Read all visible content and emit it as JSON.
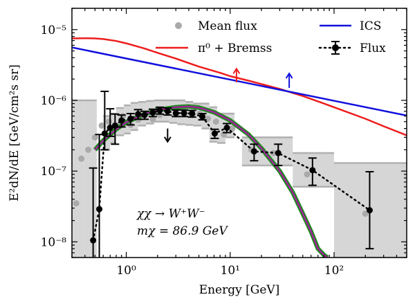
{
  "chart_data": {
    "type": "scatter",
    "title": "",
    "xlabel": "Energy [GeV]",
    "ylabel": "E²dN/dE [GeV/cm²s sr]",
    "xscale": "log",
    "yscale": "log",
    "xlim": [
      0.3,
      500
    ],
    "ylim": [
      6e-09,
      2e-05
    ],
    "x_ticks": [
      {
        "value": 1,
        "label": "10⁰"
      },
      {
        "value": 10,
        "label": "10¹"
      },
      {
        "value": 100,
        "label": "10²"
      }
    ],
    "y_ticks": [
      {
        "value": 1e-08,
        "label": "10⁻⁸"
      },
      {
        "value": 1e-07,
        "label": "10⁻⁷"
      },
      {
        "value": 1e-06,
        "label": "10⁻⁶"
      },
      {
        "value": 1e-05,
        "label": "10⁻⁵"
      }
    ],
    "legend": {
      "placement": "top",
      "entries": [
        {
          "key": "mean",
          "label": "Mean flux"
        },
        {
          "key": "pi0",
          "label": "π⁰ + Bremss"
        },
        {
          "key": "ics",
          "label": "ICS"
        },
        {
          "key": "flux",
          "label": "Flux"
        }
      ]
    },
    "annotation": {
      "line1": "χχ → W⁺W⁻",
      "line2": "mχ = 86.9 GeV"
    },
    "colors": {
      "pi0": "#ee1c1c",
      "ics": "#1010dd",
      "mean": "#aaaaaa",
      "band_fill": "#d6d6d6",
      "band_edge": "#b0b0b0",
      "dm_outer": "#1f8a1f",
      "dm_inner": "#a0209a",
      "flux": "#000000"
    },
    "series": [
      {
        "name": "pi0",
        "label": "π⁰ + Bremss",
        "x": [
          0.3,
          0.4,
          0.5,
          0.6,
          0.8,
          1.0,
          1.5,
          2,
          3,
          5,
          8,
          10,
          15,
          20,
          30,
          50,
          80,
          100,
          200,
          300,
          500
        ],
        "y": [
          7.5e-06,
          7.55e-06,
          7.5e-06,
          7.35e-06,
          6.9e-06,
          6.4e-06,
          5.4e-06,
          4.7e-06,
          3.9e-06,
          3e-06,
          2.45e-06,
          2.2e-06,
          1.9e-06,
          1.7e-06,
          1.45e-06,
          1.15e-06,
          9e-07,
          8e-07,
          5.5e-07,
          4.3e-07,
          3.2e-07
        ]
      },
      {
        "name": "ics",
        "label": "ICS",
        "x": [
          0.3,
          500
        ],
        "y": [
          5.6e-06,
          6.1e-07
        ]
      },
      {
        "name": "dm_model",
        "label": "χχ → W⁺W⁻",
        "x": [
          0.5,
          0.6,
          0.7,
          0.8,
          1.0,
          1.5,
          2,
          3,
          4,
          5,
          7,
          10,
          15,
          20,
          30,
          40,
          50,
          60,
          70,
          80,
          86
        ],
        "y": [
          2e-07,
          2.7e-07,
          3.3e-07,
          3.9e-07,
          4.9e-07,
          6.4e-07,
          7.3e-07,
          8e-07,
          8.2e-07,
          7.9e-07,
          6.8e-07,
          5.2e-07,
          3.3e-07,
          2.1e-07,
          1e-07,
          5e-08,
          2.5e-08,
          1.4e-08,
          8e-09,
          6.5e-09,
          6e-09
        ]
      },
      {
        "name": "mean_flux",
        "label": "Mean flux",
        "x": [
          0.33,
          0.37,
          0.43,
          0.5,
          0.58,
          0.68,
          0.8,
          0.93,
          1.1,
          1.3,
          1.5,
          1.8,
          2.1,
          2.5,
          3.0,
          3.6,
          4.3,
          5.1,
          6.1,
          7.3,
          8.7,
          10.5,
          16,
          26,
          55,
          200
        ],
        "y": [
          3.5e-08,
          1.5e-07,
          2e-07,
          3e-07,
          4.4e-07,
          5e-07,
          4.4e-07,
          6e-07,
          4.5e-07,
          5.3e-07,
          6.2e-07,
          5.4e-07,
          6.2e-07,
          7.5e-07,
          6.3e-07,
          6.8e-07,
          6.2e-07,
          6.5e-07,
          5.5e-07,
          5e-07,
          3.3e-07,
          4e-07,
          2e-07,
          1.8e-07,
          9e-08,
          2.5e-08
        ]
      },
      {
        "name": "flux",
        "label": "Flux",
        "x": [
          0.48,
          0.55,
          0.62,
          0.7,
          0.78,
          0.9,
          1.1,
          1.3,
          1.5,
          1.8,
          2.1,
          2.5,
          3.0,
          3.6,
          4.3,
          5.4,
          7.1,
          9.3,
          17,
          29,
          62,
          220
        ],
        "y": [
          1.05e-08,
          2.9e-08,
          3.4e-07,
          4.1e-07,
          4.4e-07,
          5.2e-07,
          5.5e-07,
          6.4e-07,
          6.2e-07,
          6.7e-07,
          7.2e-07,
          7e-07,
          6.6e-07,
          6.6e-07,
          6.5e-07,
          5.9e-07,
          3.4e-07,
          4.1e-07,
          1.9e-07,
          1.8e-07,
          1.03e-07,
          2.8e-08
        ],
        "yerr_low": [
          9e-09,
          2.5e-08,
          1.4e-07,
          1e-07,
          2e-07,
          1e-07,
          1e-07,
          1e-07,
          8e-08,
          8e-08,
          8e-08,
          8e-08,
          7e-08,
          7e-08,
          7e-08,
          6e-08,
          5e-08,
          6e-08,
          5e-08,
          6e-08,
          4e-08,
          2e-08
        ],
        "yerr_high": [
          1e-07,
          3e-07,
          1e-06,
          3.5e-07,
          2e-07,
          1e-07,
          1e-07,
          1e-07,
          8e-08,
          8e-08,
          8e-08,
          8e-08,
          7e-08,
          7e-08,
          7e-08,
          6e-08,
          5e-08,
          6e-08,
          5e-08,
          6e-08,
          5e-08,
          7e-08
        ]
      }
    ],
    "uncertainty_bands": [
      {
        "x0": 0.3,
        "x1": 0.34,
        "y_low": 6e-09,
        "y_high": 1e-06
      },
      {
        "x0": 0.34,
        "x1": 0.39,
        "y_low": 6e-09,
        "y_high": 1e-06
      },
      {
        "x0": 0.39,
        "x1": 0.45,
        "y_low": 6e-09,
        "y_high": 1e-06
      },
      {
        "x0": 0.45,
        "x1": 0.52,
        "y_low": 6e-09,
        "y_high": 1e-06
      },
      {
        "x0": 0.6,
        "x1": 0.7,
        "y_low": 2e-07,
        "y_high": 6e-07
      },
      {
        "x0": 0.7,
        "x1": 0.8,
        "y_low": 2.5e-07,
        "y_high": 6.5e-07
      },
      {
        "x0": 0.8,
        "x1": 0.95,
        "y_low": 3.2e-07,
        "y_high": 7.8e-07
      },
      {
        "x0": 0.95,
        "x1": 1.1,
        "y_low": 3.4e-07,
        "y_high": 8.5e-07
      },
      {
        "x0": 1.1,
        "x1": 1.3,
        "y_low": 3.8e-07,
        "y_high": 9.2e-07
      },
      {
        "x0": 1.3,
        "x1": 1.55,
        "y_low": 4.4e-07,
        "y_high": 9.5e-07
      },
      {
        "x0": 1.55,
        "x1": 1.85,
        "y_low": 4.7e-07,
        "y_high": 9.8e-07
      },
      {
        "x0": 1.85,
        "x1": 2.2,
        "y_low": 5e-07,
        "y_high": 1e-06
      },
      {
        "x0": 2.2,
        "x1": 2.6,
        "y_low": 5e-07,
        "y_high": 1e-06
      },
      {
        "x0": 2.6,
        "x1": 3.1,
        "y_low": 4.8e-07,
        "y_high": 1e-06
      },
      {
        "x0": 3.1,
        "x1": 3.7,
        "y_low": 4.6e-07,
        "y_high": 1e-06
      },
      {
        "x0": 3.7,
        "x1": 4.4,
        "y_low": 4.5e-07,
        "y_high": 9.5e-07
      },
      {
        "x0": 4.4,
        "x1": 5.3,
        "y_low": 4.4e-07,
        "y_high": 9e-07
      },
      {
        "x0": 5.3,
        "x1": 6.3,
        "y_low": 4e-07,
        "y_high": 9e-07
      },
      {
        "x0": 6.3,
        "x1": 7.5,
        "y_low": 2.6e-07,
        "y_high": 8e-07
      },
      {
        "x0": 7.5,
        "x1": 9.0,
        "y_low": 2.5e-07,
        "y_high": 6.5e-07
      },
      {
        "x0": 9.0,
        "x1": 11.0,
        "y_low": 3e-07,
        "y_high": 6.5e-07
      },
      {
        "x0": 13,
        "x1": 20,
        "y_low": 1.2e-07,
        "y_high": 3e-07
      },
      {
        "x0": 20,
        "x1": 40,
        "y_low": 1.2e-07,
        "y_high": 3e-07
      },
      {
        "x0": 40,
        "x1": 100,
        "y_low": 6e-08,
        "y_high": 1.8e-07
      },
      {
        "x0": 100,
        "x1": 500,
        "y_low": 6e-09,
        "y_high": 1.3e-07
      }
    ],
    "upper_limit_arrows": [
      {
        "series": "pi0",
        "x": 11.5,
        "y_tail": 1.8e-06,
        "y_head": 2.8e-06
      },
      {
        "series": "ics",
        "x": 37,
        "y_tail": 1.5e-06,
        "y_head": 2.4e-06
      },
      {
        "series": "flux",
        "x": 2.5,
        "y_tail": 4e-07,
        "y_head": 2.6e-07
      }
    ]
  }
}
